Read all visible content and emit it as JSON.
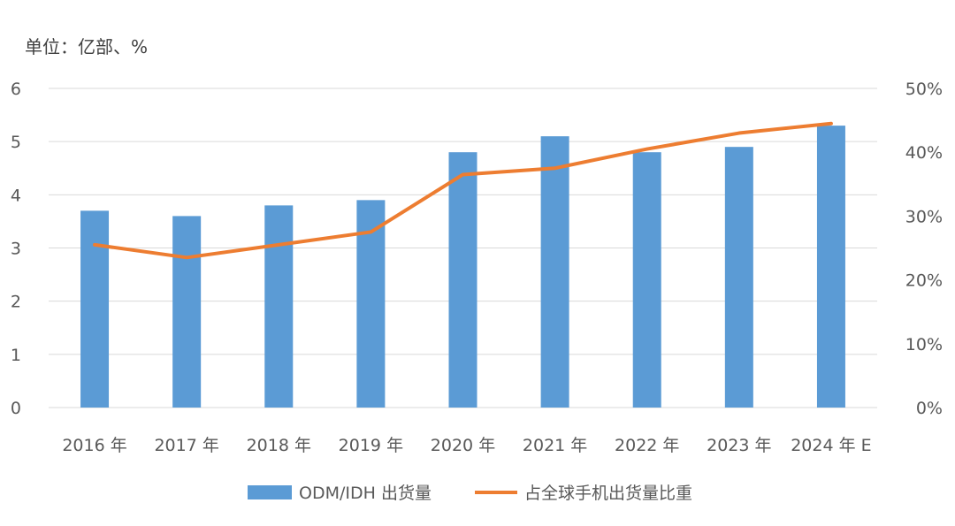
{
  "chart_data": {
    "type": "bar",
    "unit_label": "单位：亿部、%",
    "categories": [
      "2016 年",
      "2017 年",
      "2018 年",
      "2019 年",
      "2020 年",
      "2021 年",
      "2022 年",
      "2023 年",
      "2024 年 E"
    ],
    "series": [
      {
        "name": "ODM/IDH 出货量",
        "type": "bar",
        "axis": "left",
        "color": "#5b9bd5",
        "values": [
          3.7,
          3.6,
          3.8,
          3.9,
          4.8,
          5.1,
          4.8,
          4.9,
          5.3
        ]
      },
      {
        "name": "占全球手机出货量比重",
        "type": "line",
        "axis": "right",
        "color": "#ed7d31",
        "values": [
          25.5,
          23.5,
          25.5,
          27.5,
          36.5,
          37.5,
          40.5,
          43.0,
          44.5
        ]
      }
    ],
    "y_left": {
      "min": 0,
      "max": 6,
      "ticks": [
        "0",
        "1",
        "2",
        "3",
        "4",
        "5",
        "6"
      ]
    },
    "y_right": {
      "min": 0,
      "max": 50,
      "ticks": [
        "0%",
        "10%",
        "20%",
        "30%",
        "40%",
        "50%"
      ]
    },
    "grid": true,
    "legend_position": "bottom"
  }
}
